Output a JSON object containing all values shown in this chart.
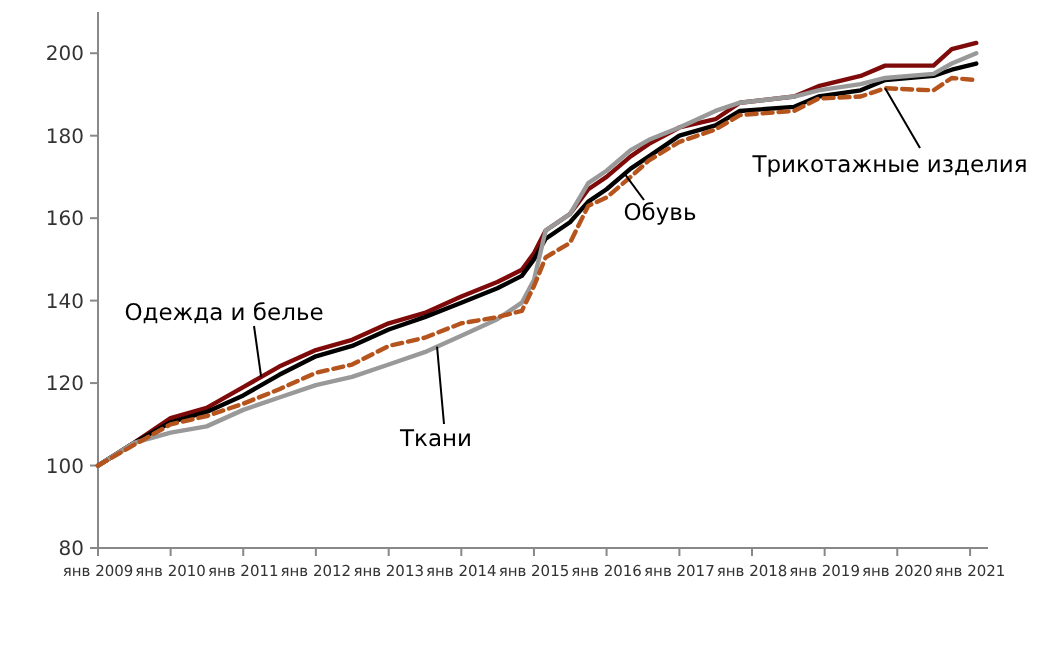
{
  "chart_data": {
    "type": "line",
    "x": [
      "2009-01",
      "2009-07",
      "2010-01",
      "2010-07",
      "2011-01",
      "2011-07",
      "2012-01",
      "2012-07",
      "2013-01",
      "2013-07",
      "2014-01",
      "2014-07",
      "2014-11",
      "2015-01",
      "2015-03",
      "2015-07",
      "2015-10",
      "2016-01",
      "2016-05",
      "2016-08",
      "2017-01",
      "2017-07",
      "2017-11",
      "2018-08",
      "2018-12",
      "2019-07",
      "2019-11",
      "2020-07",
      "2020-10",
      "2021-02"
    ],
    "series": [
      {
        "name": "Одежда и белье",
        "color": "#7f0a0a",
        "line_style": "solid",
        "values": [
          100,
          105.5,
          111.5,
          114,
          119,
          124,
          128,
          130.5,
          134.5,
          137,
          141,
          144.5,
          147.5,
          151.5,
          157,
          161,
          167,
          170,
          175,
          178,
          182,
          184,
          188,
          189.5,
          192,
          194.5,
          197,
          197,
          201,
          202.5
        ]
      },
      {
        "name": "Обувь",
        "color": "#000000",
        "line_style": "solid",
        "values": [
          100,
          105.5,
          110.5,
          113,
          117,
          122,
          126.5,
          129,
          133,
          136,
          139.5,
          143,
          146,
          150,
          155,
          159,
          164,
          167,
          172,
          175,
          180,
          182.5,
          186,
          187,
          189.5,
          191,
          193.5,
          194.5,
          196,
          197.5
        ]
      },
      {
        "name": "Ткани",
        "color": "#999999",
        "line_style": "solid",
        "values": [
          100,
          105.5,
          108,
          109.5,
          113.5,
          116.5,
          119.5,
          121.5,
          124.5,
          127.5,
          131.5,
          135.5,
          139.5,
          145,
          157,
          161,
          168.5,
          171.5,
          176.5,
          179,
          182,
          186,
          188,
          189.5,
          191,
          192.5,
          194,
          195,
          197.5,
          200
        ]
      },
      {
        "name": "Трикотажные изделия",
        "color": "#b5541c",
        "line_style": "dashed",
        "values": [
          100,
          105,
          110,
          112,
          115,
          118.5,
          122.5,
          124.5,
          129,
          131,
          134.5,
          136,
          137.5,
          143.5,
          150.5,
          154,
          163,
          165,
          170,
          174,
          178.5,
          181.5,
          185,
          186,
          189,
          189.5,
          191.5,
          191,
          194,
          193.5
        ]
      }
    ],
    "xlim": [
      "2009-01",
      "2021-04"
    ],
    "xticks": [
      {
        "value": "2009-01",
        "label": "янв 2009"
      },
      {
        "value": "2010-01",
        "label": "янв 2010"
      },
      {
        "value": "2011-01",
        "label": "янв 2011"
      },
      {
        "value": "2012-01",
        "label": "янв 2012"
      },
      {
        "value": "2013-01",
        "label": "янв 2013"
      },
      {
        "value": "2014-01",
        "label": "янв 2014"
      },
      {
        "value": "2015-01",
        "label": "янв 2015"
      },
      {
        "value": "2016-01",
        "label": "янв 2016"
      },
      {
        "value": "2017-01",
        "label": "янв 2017"
      },
      {
        "value": "2018-01",
        "label": "янв 2018"
      },
      {
        "value": "2019-01",
        "label": "янв 2019"
      },
      {
        "value": "2020-01",
        "label": "янв 2020"
      },
      {
        "value": "2021-01",
        "label": "янв 2021"
      }
    ],
    "ylim": [
      80,
      210
    ],
    "yticks": [
      80,
      100,
      120,
      140,
      160,
      180,
      200
    ],
    "grid": false,
    "marker": "none"
  }
}
